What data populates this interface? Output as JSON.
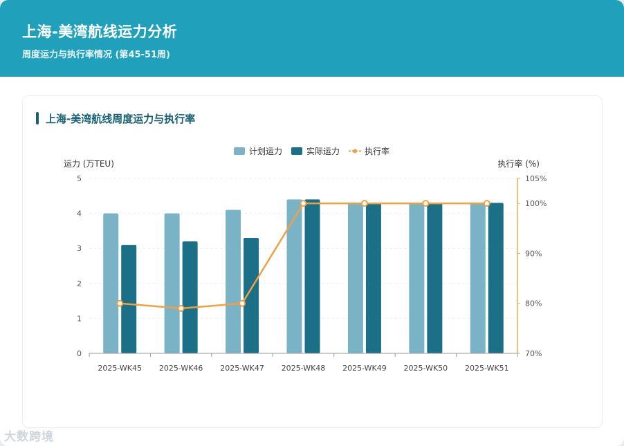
{
  "header": {
    "title": "上海-美湾航线运力分析",
    "subtitle": "周度运力与执行率情况 (第45-51周)"
  },
  "card": {
    "title": "上海-美湾航线周度运力与执行率"
  },
  "watermark": "大数跨境",
  "colors": {
    "header_bg": "#21a0bc",
    "planned": "#7ab3c6",
    "actual": "#1b6f87",
    "rate": "#f0a044",
    "axis_right": "#e3ad55"
  },
  "chart_data": {
    "type": "bar",
    "categories": [
      "2025-WK45",
      "2025-WK46",
      "2025-WK47",
      "2025-WK48",
      "2025-WK49",
      "2025-WK50",
      "2025-WK51"
    ],
    "series": [
      {
        "name": "计划运力",
        "type": "bar",
        "axis": "left",
        "values": [
          4.0,
          4.0,
          4.1,
          4.4,
          4.3,
          4.3,
          4.3
        ]
      },
      {
        "name": "实际运力",
        "type": "bar",
        "axis": "left",
        "values": [
          3.1,
          3.2,
          3.3,
          4.4,
          4.3,
          4.3,
          4.3
        ]
      },
      {
        "name": "执行率",
        "type": "line",
        "axis": "right",
        "values": [
          80,
          79,
          80,
          100,
          100,
          100,
          100
        ]
      }
    ],
    "ylabel": "运力 (万TEU)",
    "ylim": [
      0,
      5
    ],
    "yticks": [
      "0",
      "1",
      "2",
      "3",
      "4",
      "5"
    ],
    "y2label": "执行率 (%)",
    "y2lim": [
      70,
      105
    ],
    "y2ticks": [
      {
        "value": 70,
        "label": "70%"
      },
      {
        "value": 80,
        "label": "80%"
      },
      {
        "value": 90,
        "label": "90%"
      },
      {
        "value": 100,
        "label": "100%"
      },
      {
        "value": 105,
        "label": "105%"
      }
    ],
    "legend_position": "top-center",
    "grid": true
  }
}
